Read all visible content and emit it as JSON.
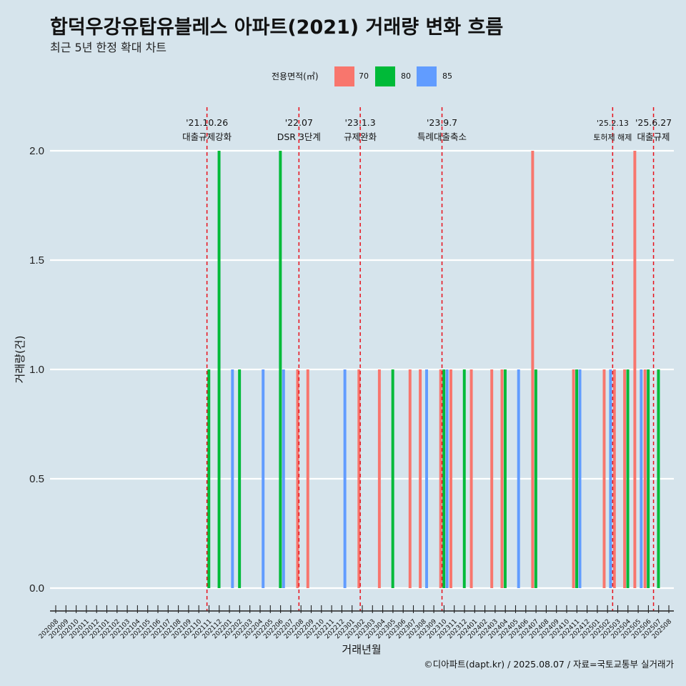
{
  "chart_data": {
    "type": "bar",
    "title": "합덕우강유탑유블레스 아파트(2021) 거래량 변화 흐름",
    "subtitle": "최근 5년 한정 확대 차트",
    "xlabel": "거래년월",
    "ylabel": "거래량(건)",
    "ylim": [
      0,
      2
    ],
    "yticks": [
      "0.0",
      "0.5",
      "1.0",
      "1.5",
      "2.0"
    ],
    "ytick_values": [
      0,
      0.5,
      1.0,
      1.5,
      2.0
    ],
    "legend_title": "전용면적(㎡)",
    "legend_position": "top",
    "grid": true,
    "categories": [
      "202008",
      "202009",
      "202010",
      "202011",
      "202012",
      "202101",
      "202102",
      "202103",
      "202104",
      "202105",
      "202106",
      "202107",
      "202108",
      "202109",
      "202110",
      "202111",
      "202112",
      "202201",
      "202202",
      "202203",
      "202204",
      "202205",
      "202206",
      "202207",
      "202208",
      "202209",
      "202210",
      "202211",
      "202212",
      "202301",
      "202302",
      "202303",
      "202304",
      "202305",
      "202306",
      "202307",
      "202308",
      "202309",
      "202310",
      "202311",
      "202312",
      "202401",
      "202402",
      "202403",
      "202404",
      "202405",
      "202406",
      "202407",
      "202408",
      "202409",
      "202410",
      "202411",
      "202412",
      "202501",
      "202502",
      "202503",
      "202504",
      "202505",
      "202506",
      "202507",
      "202508"
    ],
    "series": [
      {
        "name": "70",
        "color": "#f8766d",
        "values": [
          0,
          0,
          0,
          0,
          0,
          0,
          0,
          0,
          0,
          0,
          0,
          0,
          0,
          0,
          0,
          0,
          0,
          0,
          0,
          0,
          0,
          0,
          0,
          0,
          1,
          1,
          0,
          0,
          0,
          0,
          1,
          0,
          1,
          0,
          0,
          1,
          1,
          0,
          1,
          1,
          0,
          1,
          0,
          1,
          1,
          0,
          0,
          2,
          0,
          0,
          0,
          1,
          0,
          0,
          1,
          1,
          1,
          2,
          1,
          0,
          0
        ]
      },
      {
        "name": "80",
        "color": "#00ba38",
        "values": [
          0,
          0,
          0,
          0,
          0,
          0,
          0,
          0,
          0,
          0,
          0,
          0,
          0,
          0,
          0,
          1,
          2,
          0,
          1,
          0,
          0,
          0,
          2,
          0,
          0,
          0,
          0,
          0,
          0,
          0,
          0,
          0,
          0,
          1,
          0,
          0,
          0,
          0,
          1,
          0,
          1,
          0,
          0,
          0,
          1,
          0,
          0,
          1,
          0,
          0,
          0,
          1,
          0,
          0,
          0,
          0,
          1,
          0,
          1,
          1,
          0
        ]
      },
      {
        "name": "85",
        "color": "#619cff",
        "values": [
          0,
          0,
          0,
          0,
          0,
          0,
          0,
          0,
          0,
          0,
          0,
          0,
          0,
          0,
          0,
          0,
          0,
          1,
          0,
          0,
          1,
          0,
          1,
          0,
          0,
          0,
          0,
          0,
          1,
          0,
          0,
          0,
          0,
          0,
          0,
          0,
          1,
          0,
          1,
          0,
          0,
          0,
          0,
          0,
          0,
          1,
          0,
          0,
          0,
          0,
          0,
          1,
          0,
          0,
          1,
          0,
          0,
          1,
          0,
          0,
          0
        ]
      }
    ],
    "events": [
      {
        "date": "'21.10.26",
        "label": "대출규제강화",
        "pos": 14.8
      },
      {
        "date": "'22.07",
        "label": "DSR 3단계",
        "pos": 23.8
      },
      {
        "date": "'23.1.3",
        "label": "규제완화",
        "pos": 29.8
      },
      {
        "date": "'23.9.7",
        "label": "특례대출축소",
        "pos": 37.8
      },
      {
        "date": "'25.2.13",
        "label": "토허제 해제",
        "pos": 54.5
      },
      {
        "date": "'25.6.27",
        "label": "대출규제",
        "pos": 58.5
      }
    ]
  },
  "caption": "©디아파트(dapt.kr) / 2025.08.07 / 자료=국토교통부 실거래가"
}
